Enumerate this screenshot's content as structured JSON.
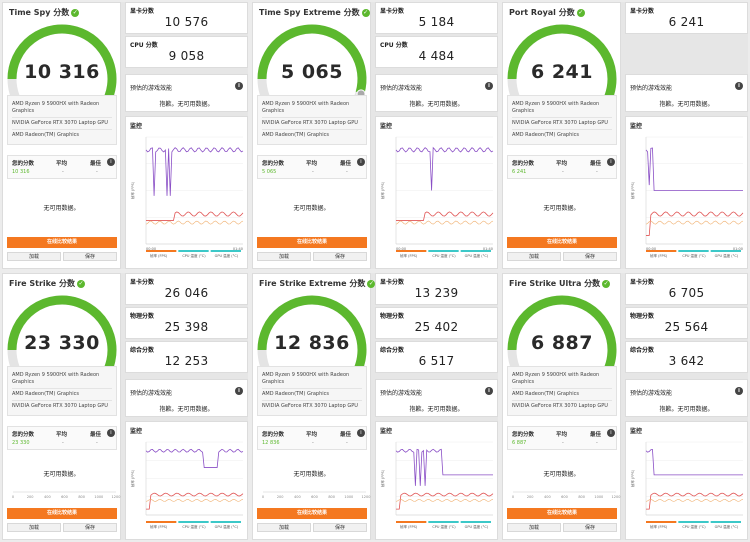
{
  "labels": {
    "gpu_score": "显卡分数",
    "cpu_score": "CPU 分数",
    "physics_score": "物理分数",
    "combined_score": "综合分数",
    "est_perf": "预估的游戏效能",
    "no_data_sorry": "抱歉。无可用数据。",
    "monitor": "监控",
    "your_score": "您的分数",
    "average": "平均",
    "best": "最佳",
    "dash": "-",
    "no_data": "无可用数据。",
    "online_compare": "在线比较结果",
    "load": "加载",
    "save": "保存",
    "legend_fps": "帧率 (FPS)",
    "legend_cpu_temp": "CPU 温度 (°C)",
    "legend_gpu_temp": "GPU 温度 (°C)",
    "yaxis": "帧率 (FPS)"
  },
  "tests": [
    {
      "title": "Time Spy 分数",
      "score": "10 316",
      "gauge_fraction": 0.78,
      "hardware": [
        "AMD Ryzen 9 5900HX with Radeon Graphics",
        "NVIDIA GeForce RTX 3070 Laptop GPU",
        "AMD Radeon(TM) Graphics"
      ],
      "subscores": [
        {
          "key": "gpu_score",
          "value": "10 576"
        },
        {
          "key": "cpu_score",
          "value": "9 058"
        }
      ],
      "compare_no_data": false,
      "monitor": "chart",
      "x_ticks": [
        "00:00",
        "",
        "01:40"
      ]
    },
    {
      "title": "Time Spy Extreme 分数",
      "score": "5 065",
      "gauge_fraction": 0.72,
      "hardware": [
        "AMD Ryzen 9 5900HX with Radeon Graphics",
        "NVIDIA GeForce RTX 3070 Laptop GPU",
        "AMD Radeon(TM) Graphics"
      ],
      "subscores": [
        {
          "key": "gpu_score",
          "value": "5 184"
        },
        {
          "key": "cpu_score",
          "value": "4 484"
        }
      ],
      "compare_no_data": true,
      "monitor": "chart",
      "x_ticks": [
        "00:00",
        "",
        "01:40"
      ]
    },
    {
      "title": "Port Royal 分数",
      "score": "6 241",
      "gauge_fraction": 0.75,
      "hardware": [
        "AMD Ryzen 9 5900HX with Radeon Graphics",
        "NVIDIA GeForce RTX 3070 Laptop GPU",
        "AMD Radeon(TM) Graphics"
      ],
      "subscores": [
        {
          "key": "gpu_score",
          "value": "6 241"
        }
      ],
      "compare_no_data": false,
      "monitor": "chart",
      "x_ticks": [
        "00:00",
        "",
        "01:00"
      ]
    },
    {
      "title": "Fire Strike 分数",
      "score": "23 330",
      "gauge_fraction": 0.8,
      "hardware": [
        "AMD Ryzen 9 5900HX with Radeon Graphics",
        "AMD Radeon(TM) Graphics",
        "NVIDIA GeForce RTX 3070 Laptop GPU"
      ],
      "subscores": [
        {
          "key": "gpu_score",
          "value": "26 046"
        },
        {
          "key": "physics_score",
          "value": "25 398"
        },
        {
          "key": "combined_score",
          "value": "12 253"
        }
      ],
      "compare_no_data": true,
      "monitor": "chart",
      "x_ticks": [
        "",
        "",
        ""
      ]
    },
    {
      "title": "Fire Strike Extreme 分数",
      "score": "12 836",
      "gauge_fraction": 0.77,
      "hardware": [
        "AMD Ryzen 9 5900HX with Radeon Graphics",
        "AMD Radeon(TM) Graphics",
        "NVIDIA GeForce RTX 3070 Laptop GPU"
      ],
      "subscores": [
        {
          "key": "gpu_score",
          "value": "13 239"
        },
        {
          "key": "physics_score",
          "value": "25 402"
        },
        {
          "key": "combined_score",
          "value": "6 517"
        }
      ],
      "compare_no_data": true,
      "monitor": "chart",
      "x_ticks": [
        "",
        "",
        ""
      ]
    },
    {
      "title": "Fire Strike Ultra 分数",
      "score": "6 887",
      "gauge_fraction": 0.76,
      "hardware": [
        "AMD Ryzen 9 5900HX with Radeon Graphics",
        "AMD Radeon(TM) Graphics",
        "NVIDIA GeForce RTX 3070 Laptop GPU"
      ],
      "subscores": [
        {
          "key": "gpu_score",
          "value": "6 705"
        },
        {
          "key": "physics_score",
          "value": "25 564"
        },
        {
          "key": "combined_score",
          "value": "3 642"
        }
      ],
      "compare_no_data": true,
      "monitor": "chart",
      "x_ticks": [
        "",
        "",
        ""
      ]
    }
  ],
  "colors": {
    "green": "#5cb82e",
    "orange": "#f47820",
    "purple": "#8a4fc6",
    "red": "#e05555",
    "teal": "#3cc8c8"
  }
}
